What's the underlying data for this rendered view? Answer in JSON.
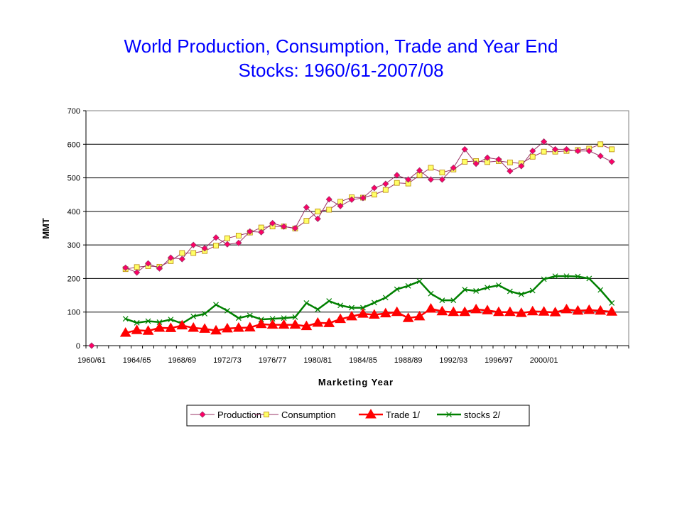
{
  "chart_data": {
    "type": "line",
    "title_line1": "World Production, Consumption, Trade and Year End",
    "title_line2": "Stocks: 1960/61-2007/08",
    "xlabel": "Marketing Year",
    "ylabel": "MMT",
    "ylim": [
      0,
      700
    ],
    "yticks": [
      0,
      100,
      200,
      300,
      400,
      500,
      600,
      700
    ],
    "xcategories": [
      "1960/61",
      "1961/62",
      "1962/63",
      "1963/64",
      "1964/65",
      "1965/66",
      "1966/67",
      "1967/68",
      "1968/69",
      "1969/70",
      "1970/71",
      "1971/72",
      "1972/73",
      "1973/74",
      "1974/75",
      "1975/76",
      "1976/77",
      "1977/78",
      "1978/79",
      "1979/80",
      "1980/81",
      "1981/82",
      "1982/83",
      "1983/84",
      "1984/85",
      "1985/86",
      "1986/87",
      "1987/88",
      "1988/89",
      "1989/90",
      "1990/91",
      "1991/92",
      "1992/93",
      "1993/94",
      "1994/95",
      "1995/96",
      "1996/97",
      "1997/98",
      "1998/99",
      "1999/00",
      "2000/01",
      "2001/02",
      "2002/03",
      "2003/04",
      "2004/05",
      "2005/06",
      "2006/07",
      "2007/08"
    ],
    "xticklabels": [
      "1960/61",
      "1964/65",
      "1968/69",
      "1972/73",
      "1976/77",
      "1980/81",
      "1984/85",
      "1988/89",
      "1992/93",
      "1996/97",
      "2000/01"
    ],
    "grid": true,
    "legend_position": "bottom",
    "series": [
      {
        "name": "Production",
        "color": "#993366",
        "marker": "diamond",
        "marker_color": "#ff0066",
        "values": [
          0,
          null,
          null,
          232,
          218,
          245,
          230,
          262,
          258,
          300,
          290,
          322,
          302,
          306,
          340,
          338,
          365,
          355,
          350,
          412,
          378,
          436,
          416,
          435,
          440,
          470,
          482,
          508,
          495,
          522,
          495,
          495,
          530,
          585,
          542,
          560,
          555,
          520,
          535,
          580,
          608,
          585,
          585,
          580,
          580,
          565,
          548,
          null
        ]
      },
      {
        "name": "Consumption",
        "color": "#993366",
        "marker": "square",
        "marker_color": "#ffff66",
        "values": [
          null,
          null,
          null,
          228,
          234,
          237,
          235,
          252,
          276,
          276,
          282,
          298,
          320,
          328,
          337,
          352,
          355,
          355,
          349,
          372,
          400,
          405,
          429,
          442,
          441,
          450,
          464,
          485,
          483,
          508,
          530,
          516,
          525,
          548,
          550,
          547,
          550,
          546,
          543,
          563,
          578,
          578,
          580,
          583,
          587,
          600,
          585,
          null
        ]
      },
      {
        "name": "Trade  1/",
        "color": "#ff0000",
        "marker": "triangle",
        "marker_color": "#ff0000",
        "values": [
          null,
          null,
          null,
          38,
          46,
          44,
          53,
          52,
          60,
          53,
          50,
          45,
          51,
          53,
          54,
          64,
          62,
          62,
          62,
          58,
          68,
          67,
          79,
          87,
          95,
          92,
          96,
          100,
          82,
          87,
          110,
          102,
          100,
          100,
          108,
          105,
          100,
          100,
          97,
          102,
          101,
          99,
          108,
          104,
          106,
          104,
          101,
          null
        ]
      },
      {
        "name": "stocks 2/",
        "color": "#008000",
        "marker": "x",
        "marker_color": "#008000",
        "values": [
          null,
          null,
          null,
          80,
          68,
          73,
          70,
          78,
          66,
          87,
          95,
          122,
          104,
          82,
          90,
          78,
          80,
          82,
          85,
          127,
          108,
          133,
          120,
          113,
          113,
          128,
          143,
          168,
          178,
          192,
          155,
          135,
          135,
          167,
          163,
          173,
          180,
          162,
          153,
          164,
          198,
          207,
          207,
          206,
          200,
          166,
          127,
          null
        ]
      }
    ]
  }
}
